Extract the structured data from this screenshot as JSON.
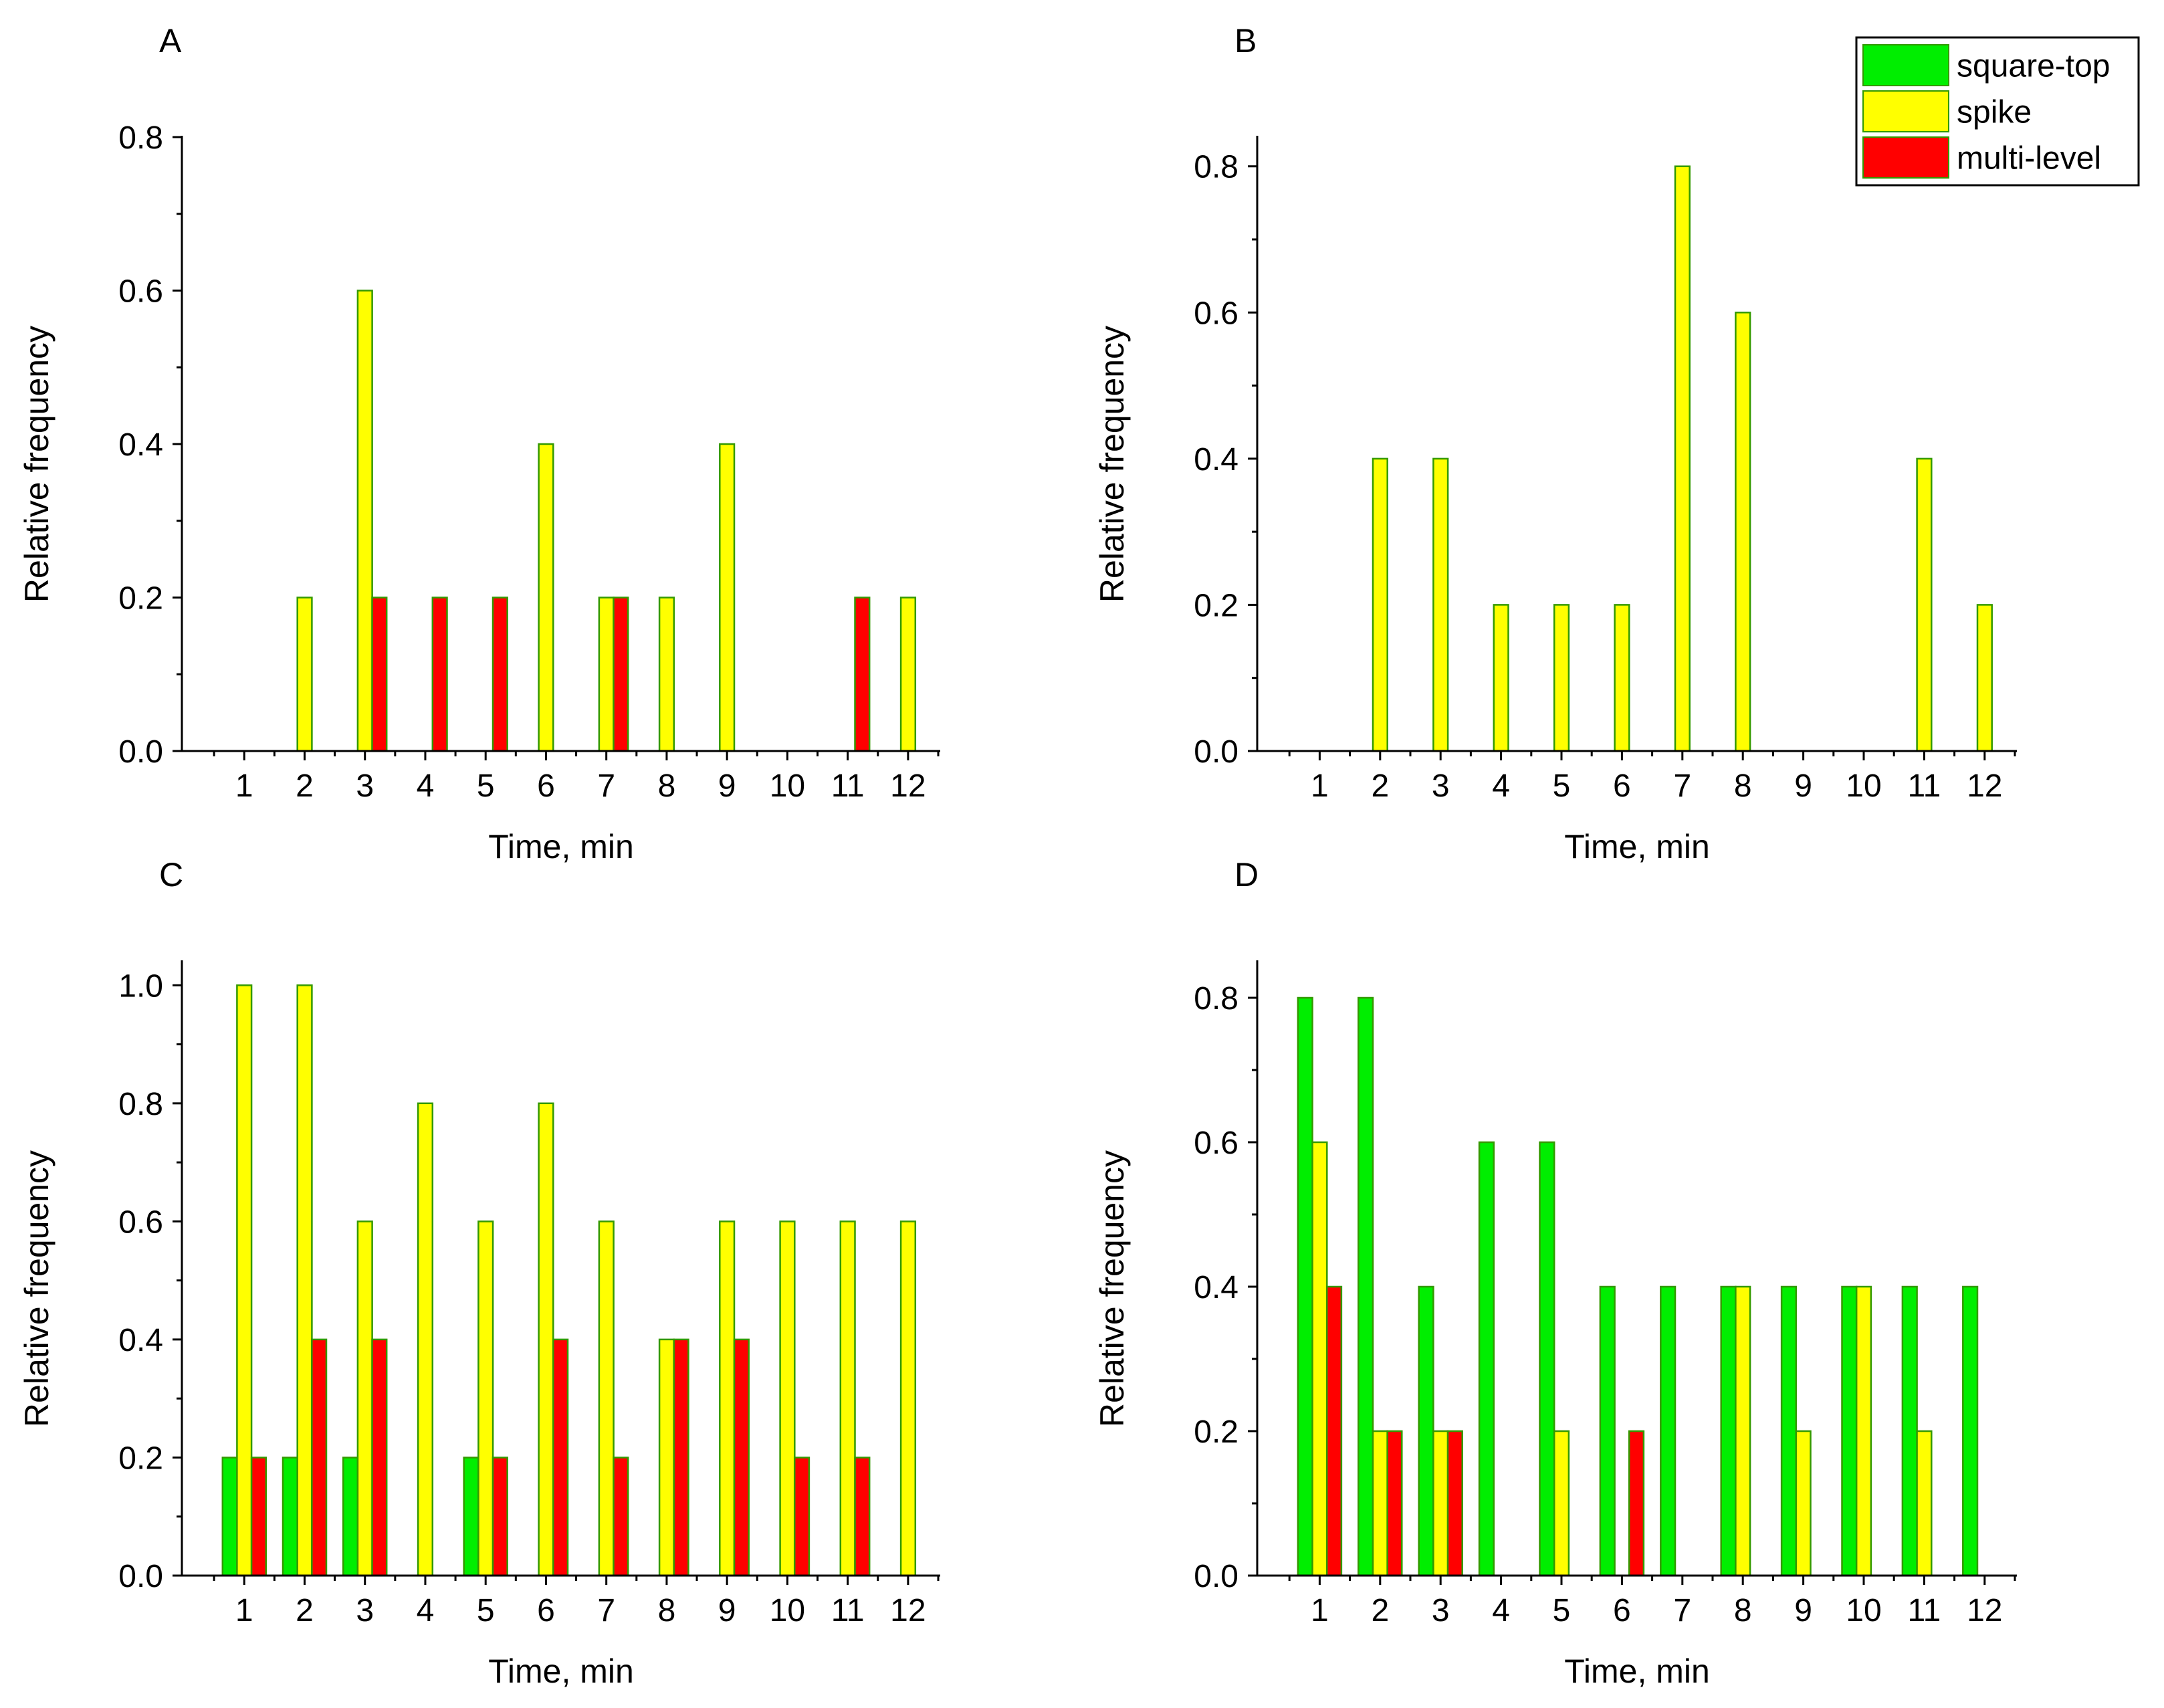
{
  "colors": {
    "square-top": "#00ee00",
    "spike": "#ffff00",
    "multi-level": "#ff0000",
    "bar_edge": "#339900"
  },
  "legend": {
    "placement": "top-right",
    "entries": [
      {
        "key": "square-top",
        "label": "square-top"
      },
      {
        "key": "spike",
        "label": "spike"
      },
      {
        "key": "multi-level",
        "label": "multi-level"
      }
    ]
  },
  "chart_data": [
    {
      "panel": "A",
      "type": "bar",
      "xlabel": "Time, min",
      "ylabel": "Relative frequency",
      "categories": [
        "1",
        "2",
        "3",
        "4",
        "5",
        "6",
        "7",
        "8",
        "9",
        "10",
        "11",
        "12"
      ],
      "ylim": [
        0,
        0.8
      ],
      "yticks": [
        0.0,
        0.2,
        0.4,
        0.6,
        0.8
      ],
      "yticklabels": [
        "0.0",
        "0.2",
        "0.4",
        "0.6",
        "0.8"
      ],
      "series": [
        {
          "name": "square-top",
          "values": [
            0,
            0,
            0,
            0,
            0,
            0,
            0,
            0,
            0,
            0,
            0,
            0
          ]
        },
        {
          "name": "spike",
          "values": [
            0,
            0.2,
            0.6,
            0,
            0,
            0.4,
            0.2,
            0.2,
            0.4,
            0,
            0,
            0.2
          ]
        },
        {
          "name": "multi-level",
          "values": [
            0,
            0,
            0.2,
            0.2,
            0.2,
            0,
            0.2,
            0,
            0,
            0,
            0.2,
            0
          ]
        }
      ]
    },
    {
      "panel": "B",
      "type": "bar",
      "xlabel": "Time, min",
      "ylabel": "Relative frequency",
      "categories": [
        "1",
        "2",
        "3",
        "4",
        "5",
        "6",
        "7",
        "8",
        "9",
        "10",
        "11",
        "12"
      ],
      "ylim": [
        0,
        0.84
      ],
      "yticks": [
        0.0,
        0.2,
        0.4,
        0.6,
        0.8
      ],
      "yticklabels": [
        "0.0",
        "0.2",
        "0.4",
        "0.6",
        "0.8"
      ],
      "series": [
        {
          "name": "square-top",
          "values": [
            0,
            0,
            0,
            0,
            0,
            0,
            0,
            0,
            0,
            0,
            0,
            0
          ]
        },
        {
          "name": "spike",
          "values": [
            0,
            0.4,
            0.4,
            0.2,
            0.2,
            0.2,
            0.8,
            0.6,
            0,
            0,
            0.4,
            0.2
          ]
        },
        {
          "name": "multi-level",
          "values": [
            0,
            0,
            0,
            0,
            0,
            0,
            0,
            0,
            0,
            0,
            0,
            0
          ]
        }
      ]
    },
    {
      "panel": "C",
      "type": "bar",
      "xlabel": "Time, min",
      "ylabel": "Relative frequency",
      "categories": [
        "1",
        "2",
        "3",
        "4",
        "5",
        "6",
        "7",
        "8",
        "9",
        "10",
        "11",
        "12"
      ],
      "ylim": [
        0,
        1.04
      ],
      "yticks": [
        0.0,
        0.2,
        0.4,
        0.6,
        0.8,
        1.0
      ],
      "yticklabels": [
        "0.0",
        "0.2",
        "0.4",
        "0.6",
        "0.8",
        "1.0"
      ],
      "series": [
        {
          "name": "square-top",
          "values": [
            0.2,
            0.2,
            0.2,
            0,
            0.2,
            0,
            0,
            0,
            0,
            0,
            0,
            0
          ]
        },
        {
          "name": "spike",
          "values": [
            1.0,
            1.0,
            0.6,
            0.8,
            0.6,
            0.8,
            0.6,
            0.4,
            0.6,
            0.6,
            0.6,
            0.6
          ]
        },
        {
          "name": "multi-level",
          "values": [
            0.2,
            0.4,
            0.4,
            0,
            0.2,
            0.4,
            0.2,
            0.4,
            0.4,
            0.2,
            0.2,
            0
          ]
        }
      ]
    },
    {
      "panel": "D",
      "type": "bar",
      "xlabel": "Time, min",
      "ylabel": "Relative frequency",
      "categories": [
        "1",
        "2",
        "3",
        "4",
        "5",
        "6",
        "7",
        "8",
        "9",
        "10",
        "11",
        "12"
      ],
      "ylim": [
        0,
        0.85
      ],
      "yticks": [
        0.0,
        0.2,
        0.4,
        0.6,
        0.8
      ],
      "yticklabels": [
        "0.0",
        "0.2",
        "0.4",
        "0.6",
        "0.8"
      ],
      "series": [
        {
          "name": "square-top",
          "values": [
            0.8,
            0.8,
            0.4,
            0.6,
            0.6,
            0.4,
            0.4,
            0.4,
            0.4,
            0.4,
            0.4,
            0.4
          ]
        },
        {
          "name": "spike",
          "values": [
            0.6,
            0.2,
            0.2,
            0,
            0.2,
            0,
            0,
            0.4,
            0.2,
            0.4,
            0.2,
            0
          ]
        },
        {
          "name": "multi-level",
          "values": [
            0.4,
            0.2,
            0.2,
            0,
            0,
            0.2,
            0,
            0,
            0,
            0,
            0,
            0
          ]
        }
      ]
    }
  ]
}
